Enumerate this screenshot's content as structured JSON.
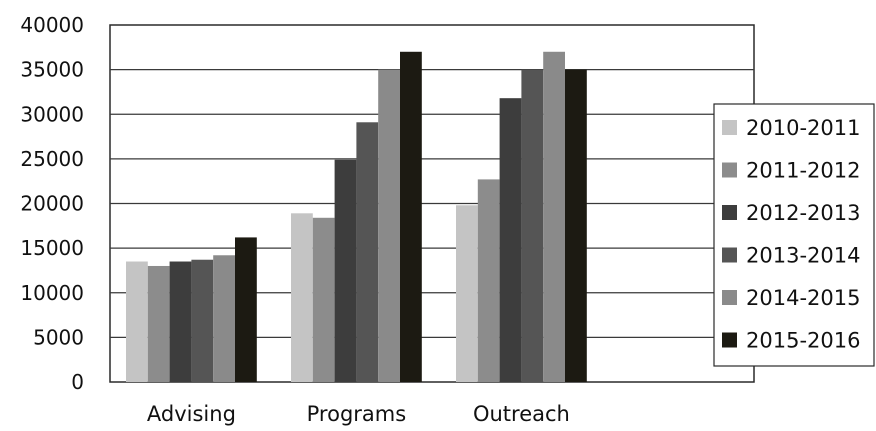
{
  "chart_data": {
    "type": "bar",
    "title": "",
    "xlabel": "",
    "ylabel": "",
    "categories": [
      "Advising",
      "Programs",
      "Outreach"
    ],
    "ylim": [
      0,
      40000
    ],
    "yticks": [
      0,
      5000,
      10000,
      15000,
      20000,
      25000,
      30000,
      35000,
      40000
    ],
    "grid": "horizontal",
    "legend_position": "right",
    "series": [
      {
        "name": "2010-2011",
        "color": "#c4c4c4",
        "values": [
          13500,
          18900,
          19800
        ]
      },
      {
        "name": "2011-2012",
        "color": "#8c8c8c",
        "values": [
          13000,
          18400,
          22700
        ]
      },
      {
        "name": "2012-2013",
        "color": "#3d3d3d",
        "values": [
          13500,
          24900,
          31800
        ]
      },
      {
        "name": "2013-2014",
        "color": "#555555",
        "values": [
          13700,
          29100,
          35000
        ]
      },
      {
        "name": "2014-2015",
        "color": "#8a8a8a",
        "values": [
          14200,
          35000,
          37000
        ]
      },
      {
        "name": "2015-2016",
        "color": "#1c1a12",
        "values": [
          16200,
          37000,
          35000
        ]
      }
    ]
  }
}
